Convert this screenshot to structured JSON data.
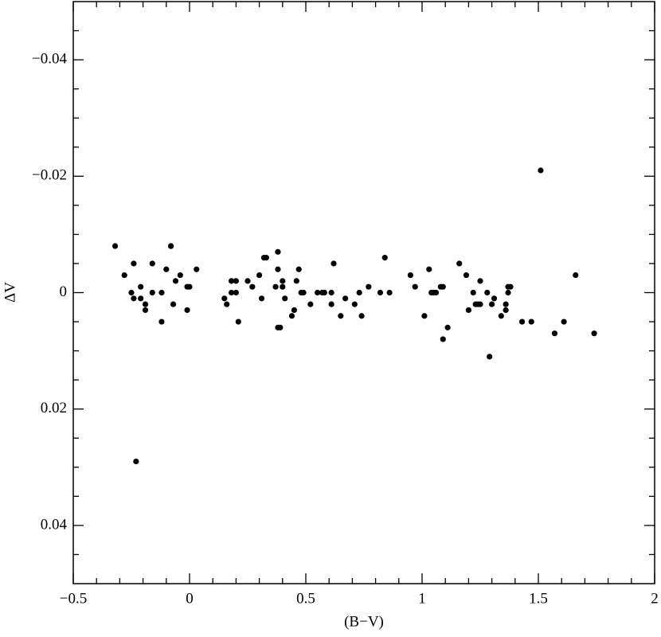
{
  "chart_data": {
    "type": "scatter",
    "x_label": "(B−V)",
    "y_label": "ΔV",
    "xlim": [
      -0.5,
      2
    ],
    "ylim": [
      -0.05,
      0.05
    ],
    "y_inverted": true,
    "xticks": [
      {
        "value": -0.5,
        "label": "−0.5"
      },
      0,
      0.5,
      1,
      1.5,
      2
    ],
    "yticks": [
      {
        "value": -0.04,
        "label": "−0.04"
      },
      {
        "value": -0.02,
        "label": "−0.02"
      },
      0,
      0.02,
      0.04
    ],
    "xminorticks": [
      -0.4,
      -0.3,
      -0.2,
      -0.1,
      0.1,
      0.2,
      0.3,
      0.4,
      0.6,
      0.7,
      0.8,
      0.9,
      1.1,
      1.2,
      1.3,
      1.4,
      1.6,
      1.7,
      1.8,
      1.9
    ],
    "yminorticks": [
      -0.045,
      -0.035,
      -0.03,
      -0.025,
      -0.015,
      -0.01,
      -0.005,
      0.005,
      0.01,
      0.015,
      0.025,
      0.03,
      0.035,
      0.045
    ],
    "color": "#000000",
    "series": [
      {
        "x": [
          -0.32,
          -0.28,
          -0.24,
          -0.25,
          -0.24,
          -0.21,
          -0.21,
          -0.19,
          -0.19,
          -0.16,
          -0.16,
          -0.12,
          -0.12,
          -0.1,
          -0.08,
          -0.08,
          -0.07,
          -0.06,
          -0.04,
          -0.01,
          0.0,
          -0.01,
          0.03,
          -0.23,
          0.15,
          0.16,
          0.18,
          0.18,
          0.2,
          0.2,
          0.21,
          0.25,
          0.27,
          0.3,
          0.31,
          0.32,
          0.33,
          0.37,
          0.38,
          0.38,
          0.38,
          0.39,
          0.4,
          0.4,
          0.41,
          0.44,
          0.45,
          0.46,
          0.47,
          0.48,
          0.49,
          0.52,
          0.55,
          0.57,
          0.58,
          0.61,
          0.61,
          0.62,
          0.65,
          0.67,
          0.71,
          0.73,
          0.74,
          0.77,
          0.82,
          0.84,
          0.86,
          0.95,
          0.97,
          1.01,
          1.03,
          1.04,
          1.05,
          1.06,
          1.08,
          1.09,
          1.09,
          1.11,
          1.16,
          1.19,
          1.2,
          1.22,
          1.23,
          1.24,
          1.25,
          1.25,
          1.28,
          1.29,
          1.3,
          1.31,
          1.34,
          1.36,
          1.36,
          1.37,
          1.37,
          1.38,
          1.43,
          1.47,
          1.51,
          1.57,
          1.61,
          1.66,
          1.74
        ],
        "values": [
          -0.008,
          -0.003,
          -0.005,
          0,
          0.001,
          -0.001,
          0.001,
          0.002,
          0.003,
          0,
          -0.005,
          0,
          0.005,
          -0.004,
          -0.008,
          -0.008,
          0.002,
          -0.002,
          -0.003,
          -0.001,
          -0.001,
          0.003,
          -0.004,
          0.029,
          0.001,
          0.002,
          -0.002,
          0,
          -0.002,
          0,
          0.005,
          -0.002,
          -0.001,
          -0.003,
          0.001,
          -0.006,
          -0.006,
          -0.001,
          -0.007,
          -0.004,
          0.006,
          0.006,
          -0.002,
          -0.001,
          0.001,
          0.004,
          0.003,
          -0.002,
          -0.004,
          0,
          0,
          0.002,
          0,
          0,
          0,
          0,
          0.002,
          -0.005,
          0.004,
          0.001,
          0.002,
          0,
          0.004,
          -0.001,
          0,
          -0.006,
          0,
          -0.003,
          -0.001,
          0.004,
          -0.004,
          0,
          0,
          0,
          -0.001,
          -0.001,
          0.008,
          0.006,
          -0.005,
          -0.003,
          0.003,
          0,
          0.002,
          0.002,
          0.002,
          -0.002,
          0,
          0.011,
          0.002,
          0.001,
          0.004,
          0.002,
          0.003,
          0,
          -0.001,
          -0.001,
          0.005,
          0.005,
          -0.021,
          0.007,
          0.005,
          -0.003,
          0.007
        ]
      }
    ]
  }
}
